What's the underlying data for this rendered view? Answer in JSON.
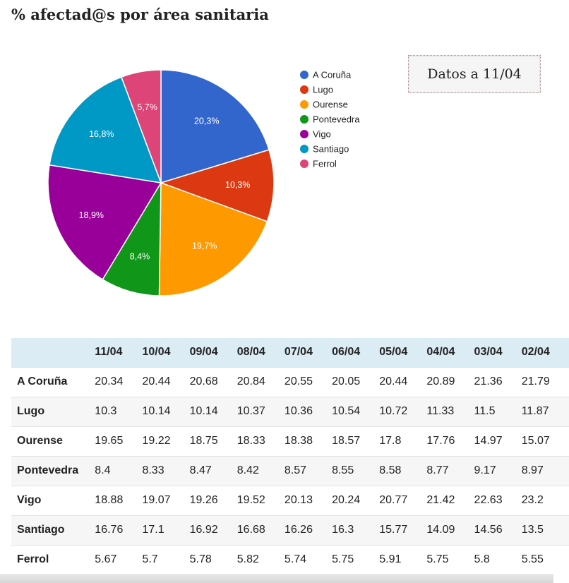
{
  "title": "% afectad@s por área sanitaria",
  "badge": "Datos a 11/04",
  "chart_data": {
    "type": "pie",
    "categories": [
      "A Coruña",
      "Lugo",
      "Ourense",
      "Pontevedra",
      "Vigo",
      "Santiago",
      "Ferrol"
    ],
    "values": [
      20.3,
      10.3,
      19.7,
      8.4,
      18.9,
      16.8,
      5.7
    ],
    "labels": [
      "20,3%",
      "10,3%",
      "19,7%",
      "8,4%",
      "18,9%",
      "16,8%",
      "5,7%"
    ],
    "colors": [
      "#3366cc",
      "#dc3912",
      "#ff9900",
      "#109618",
      "#990099",
      "#0099c6",
      "#dd4477"
    ],
    "legend_position": "right"
  },
  "table": {
    "headers": [
      "11/04",
      "10/04",
      "09/04",
      "08/04",
      "07/04",
      "06/04",
      "05/04",
      "04/04",
      "03/04",
      "02/04"
    ],
    "rows": [
      {
        "label": "A Coruña",
        "values": [
          "20.34",
          "20.44",
          "20.68",
          "20.84",
          "20.55",
          "20.05",
          "20.44",
          "20.89",
          "21.36",
          "21.79"
        ]
      },
      {
        "label": "Lugo",
        "values": [
          "10.3",
          "10.14",
          "10.14",
          "10.37",
          "10.36",
          "10.54",
          "10.72",
          "11.33",
          "11.5",
          "11.87"
        ]
      },
      {
        "label": "Ourense",
        "values": [
          "19.65",
          "19.22",
          "18.75",
          "18.33",
          "18.38",
          "18.57",
          "17.8",
          "17.76",
          "14.97",
          "15.07"
        ]
      },
      {
        "label": "Pontevedra",
        "values": [
          "8.4",
          "8.33",
          "8.47",
          "8.42",
          "8.57",
          "8.55",
          "8.58",
          "8.77",
          "9.17",
          "8.97"
        ]
      },
      {
        "label": "Vigo",
        "values": [
          "18.88",
          "19.07",
          "19.26",
          "19.52",
          "20.13",
          "20.24",
          "20.77",
          "21.42",
          "22.63",
          "23.2"
        ]
      },
      {
        "label": "Santiago",
        "values": [
          "16.76",
          "17.1",
          "16.92",
          "16.68",
          "16.26",
          "16.3",
          "15.77",
          "14.09",
          "14.56",
          "13.5"
        ]
      },
      {
        "label": "Ferrol",
        "values": [
          "5.67",
          "5.7",
          "5.78",
          "5.82",
          "5.74",
          "5.75",
          "5.91",
          "5.75",
          "5.8",
          "5.55"
        ]
      }
    ]
  }
}
